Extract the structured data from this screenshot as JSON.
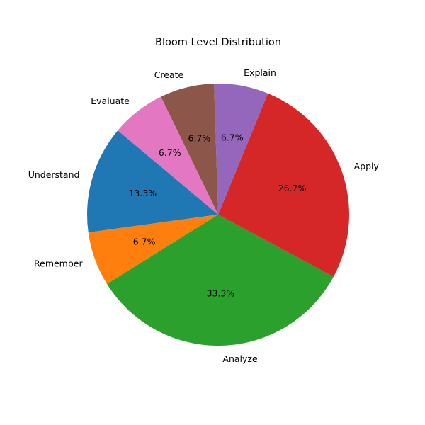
{
  "chart_data": {
    "type": "pie",
    "title": "Bloom Level Distribution",
    "start_angle_deg": 140,
    "direction": "counterclockwise",
    "slices": [
      {
        "label": "Understand",
        "value": 13.3,
        "pct_label": "13.3%",
        "color": "#1f77b4"
      },
      {
        "label": "Remember",
        "value": 6.7,
        "pct_label": "6.7%",
        "color": "#ff7f0e"
      },
      {
        "label": "Analyze",
        "value": 33.3,
        "pct_label": "33.3%",
        "color": "#2ca02c"
      },
      {
        "label": "Apply",
        "value": 26.7,
        "pct_label": "26.7%",
        "color": "#d62728"
      },
      {
        "label": "Explain",
        "value": 6.7,
        "pct_label": "6.7%",
        "color": "#9467bd"
      },
      {
        "label": "Create",
        "value": 6.7,
        "pct_label": "6.7%",
        "color": "#8c564b"
      },
      {
        "label": "Evaluate",
        "value": 6.7,
        "pct_label": "6.7%",
        "color": "#e377c2"
      }
    ]
  }
}
